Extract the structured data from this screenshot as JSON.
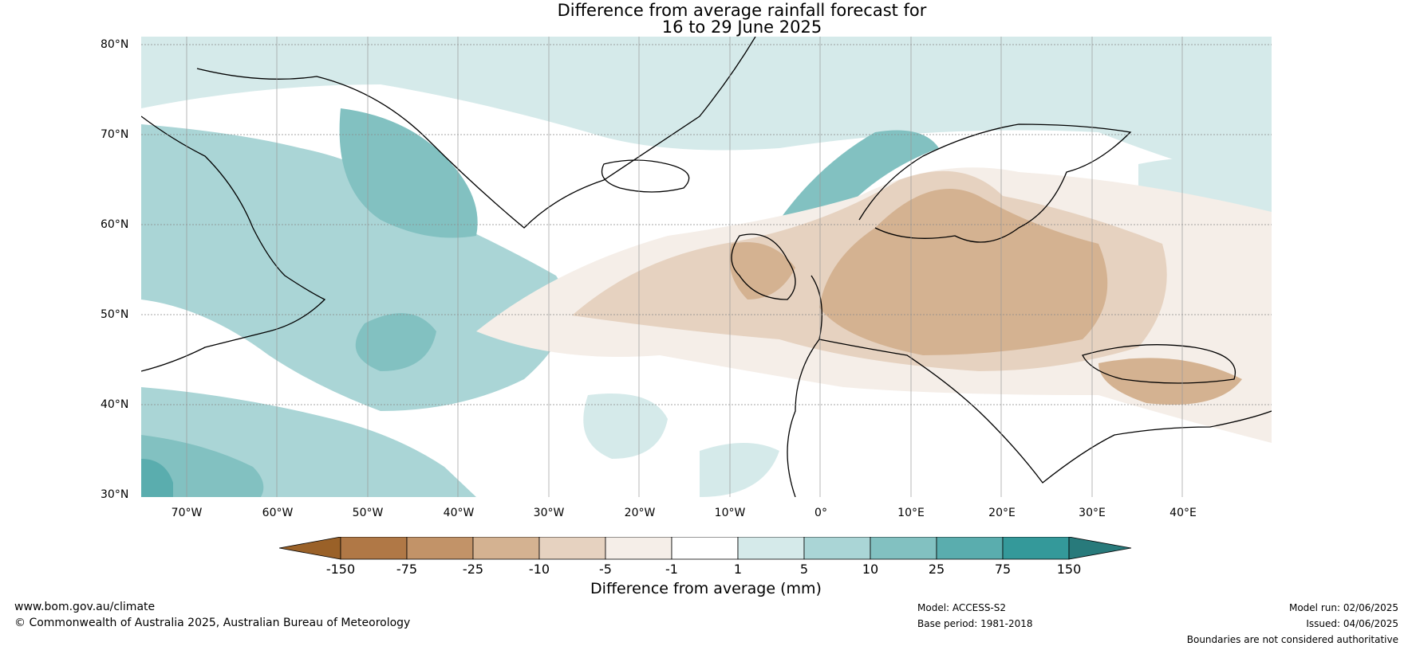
{
  "title": {
    "line1": "Difference from average rainfall forecast for",
    "line2": "16 to 29 June 2025"
  },
  "map": {
    "lat_labels": [
      "80°N",
      "70°N",
      "60°N",
      "50°N",
      "40°N",
      "30°N"
    ],
    "lon_labels": [
      "70°W",
      "60°W",
      "50°W",
      "40°W",
      "30°W",
      "20°W",
      "10°W",
      "0°",
      "10°E",
      "20°E",
      "30°E",
      "40°E"
    ],
    "lat_range": [
      30,
      81
    ],
    "lon_range": [
      -75,
      50
    ]
  },
  "colorbar": {
    "ticks": [
      "-150",
      "-75",
      "-25",
      "-10",
      "-5",
      "-1",
      "1",
      "5",
      "10",
      "25",
      "75",
      "150"
    ],
    "colors": [
      "#9a6128",
      "#b07846",
      "#c29368",
      "#d4b291",
      "#e6d2c0",
      "#f5eee8",
      "#ffffff",
      "#d5eaea",
      "#aad5d6",
      "#82c1c1",
      "#5aadae",
      "#34999a",
      "#287a7b"
    ],
    "label": "Difference from average (mm)"
  },
  "footer": {
    "website": "www.bom.gov.au/climate",
    "copyright": "© Commonwealth of Australia 2025, Australian Bureau of Meteorology",
    "model": "Model: ACCESS-S2",
    "base_period": "Base period: 1981-2018",
    "model_run": "Model run: 02/06/2025",
    "issued": "Issued: 04/06/2025",
    "disclaimer": "Boundaries are not considered authoritative"
  }
}
